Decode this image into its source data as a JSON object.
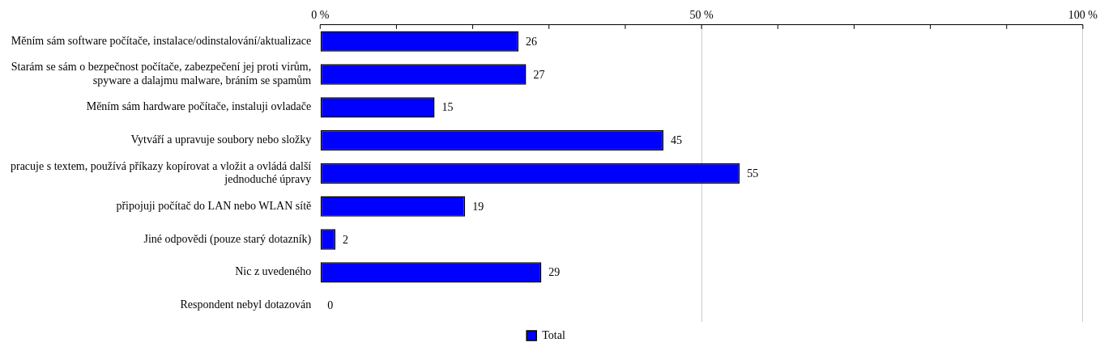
{
  "chart_data": {
    "type": "bar",
    "orientation": "horizontal",
    "categories": [
      "Měním sám software počítače, instalace/odinstalování/aktualizace",
      "Starám se sám o bezpečnost počítače, zabezpečení jej proti virům, spyware a dalajmu malware, bráním se spamům",
      "Měním sám hardware počítače, instaluji ovladače",
      "Vytváří a upravuje soubory nebo složky",
      "pracuje s textem, používá příkazy kopírovat a vložit a ovládá další jednoduché úpravy",
      "připojuji počítač do LAN nebo WLAN sítě",
      "Jiné odpovědi (pouze starý dotazník)",
      "Nic z uvedeného",
      "Respondent nebyl dotazován"
    ],
    "series": [
      {
        "name": "Total",
        "color": "#0000ff",
        "values": [
          26,
          27,
          15,
          45,
          55,
          19,
          2,
          29,
          0
        ]
      }
    ],
    "xlim": [
      0,
      100
    ],
    "xticks": [
      {
        "value": 0,
        "label": "0 %"
      },
      {
        "value": 10,
        "label": null
      },
      {
        "value": 20,
        "label": null
      },
      {
        "value": 30,
        "label": null
      },
      {
        "value": 40,
        "label": null
      },
      {
        "value": 50,
        "label": "50 %"
      },
      {
        "value": 60,
        "label": null
      },
      {
        "value": 70,
        "label": null
      },
      {
        "value": 80,
        "label": null
      },
      {
        "value": 90,
        "label": null
      },
      {
        "value": 100,
        "label": "100 %"
      }
    ],
    "grid": "x",
    "legend": "bottom",
    "data_labels": true
  }
}
